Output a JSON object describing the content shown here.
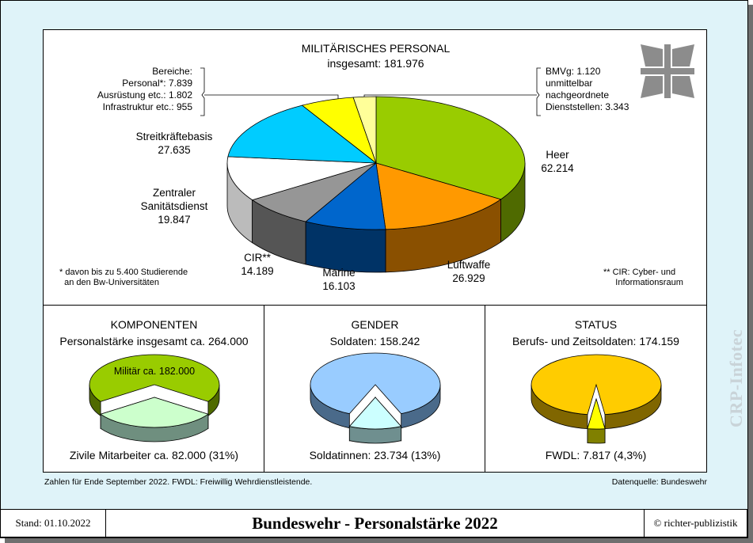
{
  "chart_data": [
    {
      "type": "pie",
      "title": "MILITÄRISCHES PERSONAL",
      "subtitle": "insgesamt: 181.976",
      "slices": [
        {
          "label": "Heer",
          "value_text": "62.214",
          "value": 62214,
          "color": "#99cc00",
          "dark": "#4f6a00"
        },
        {
          "label": "Luftwaffe",
          "value_text": "26.929",
          "value": 26929,
          "color": "#ff9900",
          "dark": "#8a5000"
        },
        {
          "label": "Marine",
          "value_text": "16.103",
          "value": 16103,
          "color": "#0066cc",
          "dark": "#003366"
        },
        {
          "label": "CIR**",
          "value_text": "14.189",
          "value": 14189,
          "color": "#969696",
          "dark": "#555555"
        },
        {
          "label": "Zentraler Sanitätsdienst",
          "label_lines": [
            "Zentraler",
            "Sanitätsdienst"
          ],
          "value_text": "19.847",
          "value": 19847,
          "color": "#ffffff",
          "dark": "#bbbbbb"
        },
        {
          "label": "Streitkräftebasis",
          "value_text": "27.635",
          "value": 27635,
          "color": "#00ccff",
          "dark": "#006680"
        },
        {
          "label": "Bereiche",
          "value": 10596,
          "color": "#ffff00",
          "dark": "#8a8a00"
        },
        {
          "label": "BMVg",
          "value": 4463,
          "color": "#ffff99",
          "dark": "#a0a050"
        }
      ],
      "bereiche_note": [
        "Bereiche:",
        "Personal*: 7.839",
        "Ausrüstung etc.: 1.802",
        "Infrastruktur etc.: 955"
      ],
      "bmvg_note": [
        "BMVg: 1.120",
        "unmittelbar",
        "nachgeordnete",
        "Dienststellen: 3.343"
      ],
      "footnote_left": [
        "* davon bis zu 5.400 Studierende",
        "an den Bw-Universitäten"
      ],
      "footnote_right": [
        "** CIR: Cyber- und",
        "Informationsraum"
      ]
    },
    {
      "type": "pie",
      "title": "KOMPONENTEN",
      "subtitle": "Personalstärke insgesamt ca. 264.000",
      "slices": [
        {
          "label": "Militär ca. 182.000",
          "value": 182000,
          "color": "#99cc00",
          "dark": "#4f6a00"
        },
        {
          "label": "Zivile Mitarbeiter ca. 82.000 (31%)",
          "value": 82000,
          "color": "#ccffcc",
          "dark": "#6f8f7f"
        }
      ]
    },
    {
      "type": "pie",
      "title": "GENDER",
      "subtitle": "Soldaten: 158.242",
      "slices": [
        {
          "label": "Soldaten",
          "value": 158242,
          "color": "#99ccff",
          "dark": "#4a6a8a"
        },
        {
          "label": "Soldatinnen: 23.734 (13%)",
          "value": 23734,
          "color": "#ccffff",
          "dark": "#6f8f8f"
        }
      ]
    },
    {
      "type": "pie",
      "title": "STATUS",
      "subtitle": "Berufs- und Zeitsoldaten: 174.159",
      "slices": [
        {
          "label": "Berufs- und Zeitsoldaten",
          "value": 174159,
          "color": "#ffcc00",
          "dark": "#806600"
        },
        {
          "label": "FWDL: 7.817 (4,3%)",
          "value": 7817,
          "color": "#ffff00",
          "dark": "#808000"
        }
      ]
    }
  ],
  "notes": {
    "bottom_left": "Zahlen für Ende September 2022. FWDL: Freiwillig Wehrdienstleistende.",
    "bottom_right": "Datenquelle: Bundeswehr"
  },
  "footer": {
    "stand": "Stand: 01.10.2022",
    "title": "Bundeswehr - Personalstärke 2022",
    "copyright": "© richter-publizistik"
  },
  "watermark": "CRP-Infotec",
  "logo_icon": "iron-cross-icon"
}
